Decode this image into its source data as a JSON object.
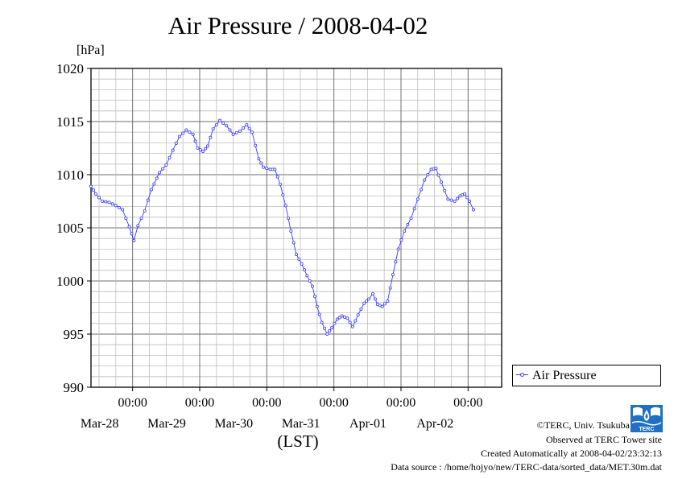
{
  "chart_data": {
    "type": "line",
    "title": "Air Pressure / 2008-04-02",
    "ylabel": "[hPa]",
    "xlabel": "(LST)",
    "ylim": [
      990,
      1020
    ],
    "yticks": [
      "1020",
      "1015",
      "1010",
      "1005",
      "1000",
      "995",
      "990"
    ],
    "xticks": [
      {
        "time": "00:00",
        "date": "Mar-28"
      },
      {
        "time": "00:00",
        "date": "Mar-29"
      },
      {
        "time": "00:00",
        "date": "Mar-30"
      },
      {
        "time": "00:00",
        "date": "Mar-31"
      },
      {
        "time": "00:00",
        "date": "Apr-01"
      },
      {
        "time": "00:00",
        "date": "Apr-02"
      }
    ],
    "x_unit": "days since 2008-03-27 00:00 LST",
    "xlim": [
      0.38,
      6.5
    ],
    "grid": true,
    "legend": "right",
    "series": [
      {
        "name": "Air Pressure",
        "color": "#3b3bff",
        "points": [
          [
            0.38,
            1008.9
          ],
          [
            0.45,
            1008.2
          ],
          [
            0.55,
            1007.5
          ],
          [
            0.65,
            1007.4
          ],
          [
            0.75,
            1007.1
          ],
          [
            0.85,
            1006.7
          ],
          [
            0.95,
            1005.1
          ],
          [
            1.02,
            1003.8
          ],
          [
            1.08,
            1005.2
          ],
          [
            1.18,
            1006.6
          ],
          [
            1.28,
            1008.6
          ],
          [
            1.4,
            1010.2
          ],
          [
            1.5,
            1010.9
          ],
          [
            1.6,
            1012.3
          ],
          [
            1.7,
            1013.6
          ],
          [
            1.8,
            1014.2
          ],
          [
            1.9,
            1013.8
          ],
          [
            1.97,
            1012.5
          ],
          [
            2.05,
            1012.2
          ],
          [
            2.12,
            1012.7
          ],
          [
            2.2,
            1014.3
          ],
          [
            2.3,
            1015.1
          ],
          [
            2.4,
            1014.6
          ],
          [
            2.5,
            1013.8
          ],
          [
            2.6,
            1014.1
          ],
          [
            2.7,
            1014.7
          ],
          [
            2.78,
            1014.0
          ],
          [
            2.88,
            1011.5
          ],
          [
            2.95,
            1010.7
          ],
          [
            3.05,
            1010.5
          ],
          [
            3.12,
            1010.5
          ],
          [
            3.2,
            1009.1
          ],
          [
            3.28,
            1007.1
          ],
          [
            3.36,
            1004.7
          ],
          [
            3.44,
            1002.5
          ],
          [
            3.52,
            1001.6
          ],
          [
            3.6,
            1000.5
          ],
          [
            3.68,
            999.5
          ],
          [
            3.75,
            997.6
          ],
          [
            3.82,
            996.1
          ],
          [
            3.9,
            995.0
          ],
          [
            3.97,
            995.6
          ],
          [
            4.05,
            996.4
          ],
          [
            4.12,
            996.7
          ],
          [
            4.2,
            996.5
          ],
          [
            4.28,
            995.7
          ],
          [
            4.36,
            996.8
          ],
          [
            4.45,
            997.9
          ],
          [
            4.52,
            998.3
          ],
          [
            4.58,
            998.8
          ],
          [
            4.65,
            997.8
          ],
          [
            4.72,
            997.6
          ],
          [
            4.8,
            998.1
          ],
          [
            4.88,
            1000.6
          ],
          [
            4.96,
            1003.0
          ],
          [
            5.05,
            1004.7
          ],
          [
            5.15,
            1005.9
          ],
          [
            5.25,
            1007.7
          ],
          [
            5.35,
            1009.5
          ],
          [
            5.45,
            1010.5
          ],
          [
            5.52,
            1010.6
          ],
          [
            5.6,
            1009.3
          ],
          [
            5.7,
            1007.7
          ],
          [
            5.8,
            1007.5
          ],
          [
            5.88,
            1008.0
          ],
          [
            5.95,
            1008.2
          ],
          [
            6.02,
            1007.5
          ],
          [
            6.08,
            1006.7
          ]
        ]
      }
    ]
  },
  "legend": {
    "label": "Air Pressure"
  },
  "footer": {
    "credit": "©TERC, Univ. Tsukuba",
    "observed": "Observed at TERC Tower site",
    "created": "Created Automatically at 2008-04-02/23:32:13",
    "source": "Data source : /home/hojyo/new/TERC-data/sorted_data/MET.30m.dat"
  },
  "logo_text": "TERC"
}
